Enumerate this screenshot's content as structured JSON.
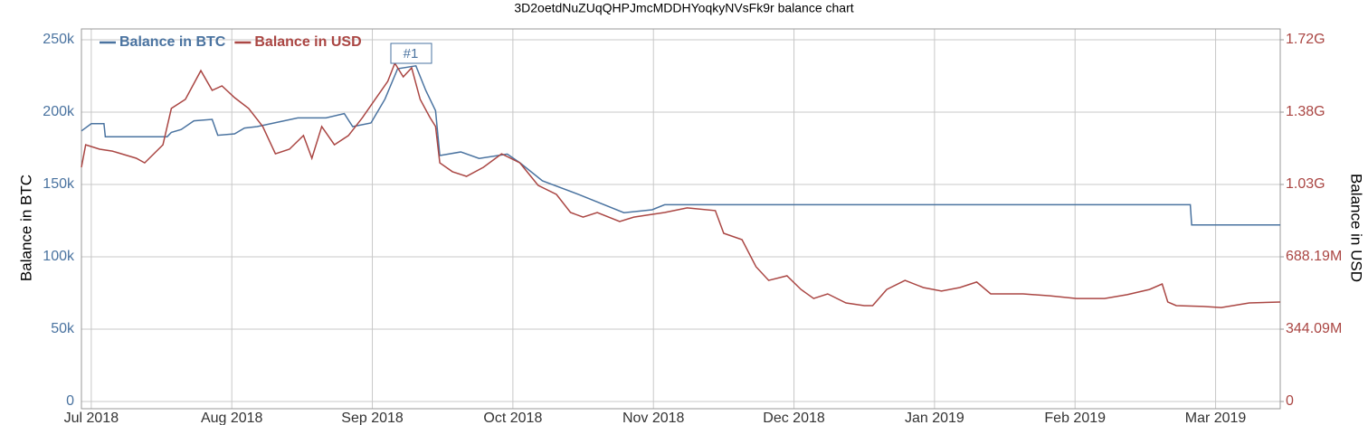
{
  "chart_data": {
    "type": "line",
    "title": "3D2oetdNuZUqQHPJmcMDDHYoqkyNVsFk9r balance chart",
    "y_label": "Balance in BTC",
    "y2_label": "Balance in USD",
    "annotations": [
      "#1"
    ],
    "grid": true,
    "legend": "top-left",
    "xlim": [
      -0.07,
      8.46
    ],
    "xticks": [
      {
        "value": 0,
        "label": "Jul 2018"
      },
      {
        "value": 1,
        "label": "Aug 2018"
      },
      {
        "value": 2,
        "label": "Sep 2018"
      },
      {
        "value": 3,
        "label": "Oct 2018"
      },
      {
        "value": 4,
        "label": "Nov 2018"
      },
      {
        "value": 5,
        "label": "Dec 2018"
      },
      {
        "value": 6,
        "label": "Jan 2019"
      },
      {
        "value": 7,
        "label": "Feb 2019"
      },
      {
        "value": 8,
        "label": "Mar 2019"
      }
    ],
    "ylim": [
      -5000,
      257500
    ],
    "yticks": [
      0,
      {
        "value": 50000,
        "label": "50k"
      },
      {
        "value": 100000,
        "label": "100k"
      },
      {
        "value": 150000,
        "label": "150k"
      },
      {
        "value": 200000,
        "label": "200k"
      },
      {
        "value": 250000,
        "label": "250k"
      }
    ],
    "y2lim": [
      -34410000,
      1772070000
    ],
    "y2ticks": [
      0,
      {
        "value": 344090000,
        "label": "344.09M"
      },
      {
        "value": 688190000,
        "label": "688.19M"
      },
      {
        "value": 1032280000,
        "label": "1.03G"
      },
      {
        "value": 1376370000,
        "label": "1.38G"
      },
      {
        "value": 1720460000,
        "label": "1.72G"
      }
    ],
    "series": [
      {
        "name": "Balance in BTC",
        "color": "#4a73a0",
        "x": [
          -0.07,
          0,
          0.09,
          0.1,
          0.54,
          0.57,
          0.64,
          0.73,
          0.86,
          0.9,
          1.02,
          1.09,
          1.18,
          1.47,
          1.67,
          1.8,
          1.86,
          1.99,
          2.09,
          2.18,
          2.31,
          2.38,
          2.45,
          2.48,
          2.63,
          2.76,
          2.96,
          3.05,
          3.21,
          3.47,
          3.79,
          3.99,
          4.08,
          7.82,
          7.83,
          8.46
        ],
        "values": [
          187000,
          192000,
          192000,
          183000,
          183000,
          186000,
          188000,
          194000,
          195000,
          184000,
          185000,
          189000,
          190000,
          196000,
          196000,
          199000,
          190000,
          192500,
          209000,
          230000,
          232000,
          215000,
          201000,
          170000,
          172500,
          168000,
          171000,
          165000,
          152500,
          143000,
          130500,
          132500,
          136000,
          136000,
          122000,
          122000
        ]
      },
      {
        "name": "Balance in USD",
        "color": "#aa4643",
        "axis": "y2",
        "x": [
          -0.07,
          -0.04,
          0.06,
          0.15,
          0.32,
          0.38,
          0.51,
          0.57,
          0.67,
          0.78,
          0.86,
          0.93,
          1.02,
          1.12,
          1.22,
          1.31,
          1.41,
          1.51,
          1.57,
          1.64,
          1.73,
          1.83,
          1.93,
          2.02,
          2.11,
          2.16,
          2.22,
          2.28,
          2.34,
          2.41,
          2.45,
          2.48,
          2.57,
          2.67,
          2.79,
          2.92,
          3.05,
          3.18,
          3.31,
          3.41,
          3.5,
          3.6,
          3.76,
          3.86,
          3.95,
          4.08,
          4.24,
          4.44,
          4.5,
          4.63,
          4.73,
          4.82,
          4.95,
          5.05,
          5.14,
          5.24,
          5.37,
          5.5,
          5.56,
          5.66,
          5.79,
          5.92,
          6.05,
          6.18,
          6.3,
          6.4,
          6.63,
          6.82,
          7.01,
          7.21,
          7.37,
          7.53,
          7.62,
          7.66,
          7.72,
          7.91,
          8.04,
          8.24,
          8.46
        ],
        "values": [
          1114000000,
          1221000000,
          1200000000,
          1191000000,
          1157000000,
          1135000000,
          1221000000,
          1394000000,
          1437000000,
          1574000000,
          1480000000,
          1501000000,
          1445000000,
          1394000000,
          1308000000,
          1178000000,
          1200000000,
          1265000000,
          1157000000,
          1308000000,
          1221000000,
          1265000000,
          1351000000,
          1437000000,
          1523000000,
          1609000000,
          1544000000,
          1587000000,
          1437000000,
          1351000000,
          1308000000,
          1135000000,
          1093000000,
          1071000000,
          1114000000,
          1178000000,
          1135000000,
          1028000000,
          985000000,
          899000000,
          877000000,
          899000000,
          856000000,
          877000000,
          886000000,
          899000000,
          921000000,
          908000000,
          800000000,
          770000000,
          641000000,
          576000000,
          598000000,
          533000000,
          490000000,
          512000000,
          469000000,
          456000000,
          456000000,
          533000000,
          576000000,
          542000000,
          525000000,
          542000000,
          568000000,
          512000000,
          512000000,
          503000000,
          490000000,
          490000000,
          508000000,
          533000000,
          559000000,
          473000000,
          456000000,
          452000000,
          447000000,
          469000000,
          473000000
        ]
      }
    ]
  }
}
